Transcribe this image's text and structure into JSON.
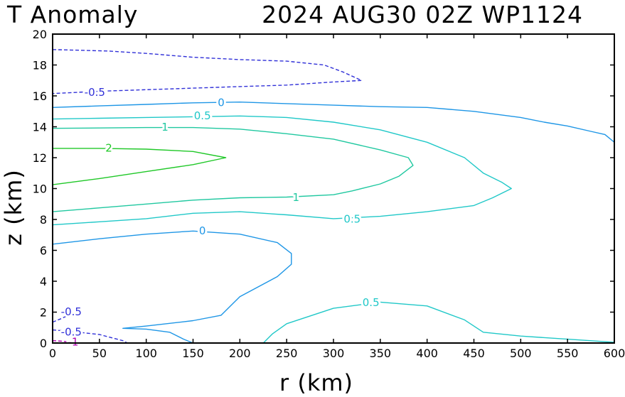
{
  "chart_data": {
    "type": "contour",
    "title": {
      "left": "T Anomaly",
      "right": "2024 AUG30 02Z   WP1124"
    },
    "xlabel": "r (km)",
    "ylabel": "z (km)",
    "xlim": [
      0,
      600
    ],
    "ylim": [
      0,
      20
    ],
    "xticks": [
      0,
      50,
      100,
      150,
      200,
      250,
      300,
      350,
      400,
      450,
      500,
      550,
      600
    ],
    "yticks": [
      0,
      2,
      4,
      6,
      8,
      10,
      12,
      14,
      16,
      18,
      20
    ],
    "colors": {
      "neg1": "#b000b0",
      "neg05": "#3030d8",
      "zero": "#1e96e6",
      "pos05": "#20c8c8",
      "pos1": "#20c8a0",
      "pos2": "#20c828"
    },
    "contours": [
      {
        "level": -0.5,
        "color": "neg05",
        "dashed": true,
        "points": [
          [
            0,
            19.0
          ],
          [
            30,
            18.95
          ],
          [
            60,
            18.9
          ],
          [
            100,
            18.75
          ],
          [
            150,
            18.5
          ],
          [
            200,
            18.35
          ],
          [
            250,
            18.25
          ],
          [
            290,
            18.0
          ],
          [
            310,
            17.55
          ],
          [
            330,
            17.0
          ],
          [
            300,
            16.9
          ],
          [
            250,
            16.7
          ],
          [
            200,
            16.6
          ],
          [
            150,
            16.5
          ],
          [
            100,
            16.4
          ],
          [
            50,
            16.3
          ],
          [
            0,
            16.15
          ]
        ],
        "labels": [
          {
            "text": "-0.5",
            "x": 45,
            "y": 16.2
          }
        ]
      },
      {
        "level": 0,
        "color": "zero",
        "dashed": false,
        "points": [
          [
            0,
            15.25
          ],
          [
            50,
            15.35
          ],
          [
            100,
            15.45
          ],
          [
            150,
            15.55
          ],
          [
            200,
            15.6
          ],
          [
            250,
            15.5
          ],
          [
            300,
            15.4
          ],
          [
            350,
            15.3
          ],
          [
            400,
            15.25
          ],
          [
            450,
            15.0
          ],
          [
            500,
            14.6
          ],
          [
            525,
            14.3
          ],
          [
            550,
            14.05
          ],
          [
            575,
            13.7
          ],
          [
            590,
            13.5
          ],
          [
            600,
            13.0
          ]
        ],
        "labels": [
          {
            "text": "0",
            "x": 180,
            "y": 15.55
          }
        ]
      },
      {
        "level": 0.5,
        "color": "pos05",
        "dashed": false,
        "points": [
          [
            0,
            14.5
          ],
          [
            50,
            14.55
          ],
          [
            100,
            14.6
          ],
          [
            150,
            14.65
          ],
          [
            200,
            14.7
          ],
          [
            250,
            14.6
          ],
          [
            300,
            14.3
          ],
          [
            350,
            13.8
          ],
          [
            400,
            13.0
          ],
          [
            440,
            12.0
          ],
          [
            460,
            11.0
          ],
          [
            480,
            10.4
          ],
          [
            490,
            10.0
          ],
          [
            470,
            9.4
          ],
          [
            450,
            8.9
          ],
          [
            400,
            8.5
          ],
          [
            350,
            8.2
          ],
          [
            300,
            8.05
          ],
          [
            250,
            8.3
          ],
          [
            200,
            8.5
          ],
          [
            150,
            8.4
          ],
          [
            100,
            8.05
          ],
          [
            50,
            7.85
          ],
          [
            0,
            7.65
          ]
        ],
        "labels": [
          {
            "text": "0.5",
            "x": 160,
            "y": 14.7
          },
          {
            "text": "0.5",
            "x": 320,
            "y": 8.0
          }
        ]
      },
      {
        "level": 1,
        "color": "pos1",
        "dashed": false,
        "points": [
          [
            0,
            13.9
          ],
          [
            50,
            13.92
          ],
          [
            100,
            13.95
          ],
          [
            150,
            13.95
          ],
          [
            200,
            13.85
          ],
          [
            250,
            13.55
          ],
          [
            300,
            13.2
          ],
          [
            350,
            12.5
          ],
          [
            380,
            12.0
          ],
          [
            385,
            11.5
          ],
          [
            370,
            10.8
          ],
          [
            350,
            10.3
          ],
          [
            320,
            9.85
          ],
          [
            300,
            9.6
          ],
          [
            250,
            9.45
          ],
          [
            200,
            9.4
          ],
          [
            150,
            9.25
          ],
          [
            100,
            9.0
          ],
          [
            50,
            8.75
          ],
          [
            0,
            8.5
          ]
        ],
        "labels": [
          {
            "text": "1",
            "x": 120,
            "y": 13.95
          },
          {
            "text": "1",
            "x": 260,
            "y": 9.4
          }
        ]
      },
      {
        "level": 2,
        "color": "pos2",
        "dashed": false,
        "points": [
          [
            0,
            12.6
          ],
          [
            50,
            12.6
          ],
          [
            100,
            12.55
          ],
          [
            150,
            12.4
          ],
          [
            185,
            12.0
          ],
          [
            150,
            11.55
          ],
          [
            100,
            11.1
          ],
          [
            50,
            10.65
          ],
          [
            0,
            10.25
          ]
        ],
        "labels": [
          {
            "text": "2",
            "x": 60,
            "y": 12.6
          }
        ]
      },
      {
        "level": 0,
        "color": "zero",
        "dashed": false,
        "points": [
          [
            0,
            6.4
          ],
          [
            50,
            6.75
          ],
          [
            100,
            7.05
          ],
          [
            150,
            7.25
          ],
          [
            200,
            7.05
          ],
          [
            240,
            6.5
          ],
          [
            255,
            5.8
          ],
          [
            255,
            5.1
          ],
          [
            240,
            4.3
          ],
          [
            200,
            3.0
          ],
          [
            190,
            2.4
          ],
          [
            180,
            1.8
          ],
          [
            150,
            1.45
          ],
          [
            100,
            1.1
          ],
          [
            75,
            0.95
          ],
          [
            100,
            0.9
          ],
          [
            125,
            0.7
          ],
          [
            140,
            0.25
          ],
          [
            150,
            0.0
          ]
        ],
        "labels": [
          {
            "text": "0",
            "x": 160,
            "y": 7.25
          }
        ]
      },
      {
        "level": 0.5,
        "color": "pos05",
        "dashed": false,
        "points": [
          [
            225,
            0.0
          ],
          [
            235,
            0.6
          ],
          [
            250,
            1.25
          ],
          [
            300,
            2.25
          ],
          [
            350,
            2.65
          ],
          [
            400,
            2.4
          ],
          [
            440,
            1.5
          ],
          [
            460,
            0.7
          ],
          [
            500,
            0.45
          ],
          [
            550,
            0.25
          ],
          [
            600,
            0.05
          ]
        ],
        "labels": [
          {
            "text": "0.5",
            "x": 340,
            "y": 2.6
          }
        ]
      },
      {
        "level": -0.5,
        "color": "neg05",
        "dashed": true,
        "points": [
          [
            0,
            1.35
          ],
          [
            10,
            1.6
          ],
          [
            20,
            1.9
          ]
        ],
        "labels": [
          {
            "text": "-0.5",
            "x": 20,
            "y": 2.0
          }
        ]
      },
      {
        "level": -0.5,
        "color": "neg05",
        "dashed": true,
        "points": [
          [
            0,
            0.85
          ],
          [
            20,
            0.75
          ],
          [
            50,
            0.55
          ],
          [
            75,
            0.15
          ],
          [
            80,
            0.0
          ]
        ],
        "labels": [
          {
            "text": "-0.5",
            "x": 20,
            "y": 0.7
          }
        ]
      },
      {
        "level": -1,
        "color": "neg1",
        "dashed": true,
        "points": [
          [
            0,
            0.15
          ],
          [
            10,
            0.12
          ],
          [
            20,
            0.05
          ],
          [
            23,
            0.0
          ]
        ],
        "labels": [
          {
            "text": "-1",
            "x": 22,
            "y": 0.05
          }
        ]
      }
    ]
  }
}
